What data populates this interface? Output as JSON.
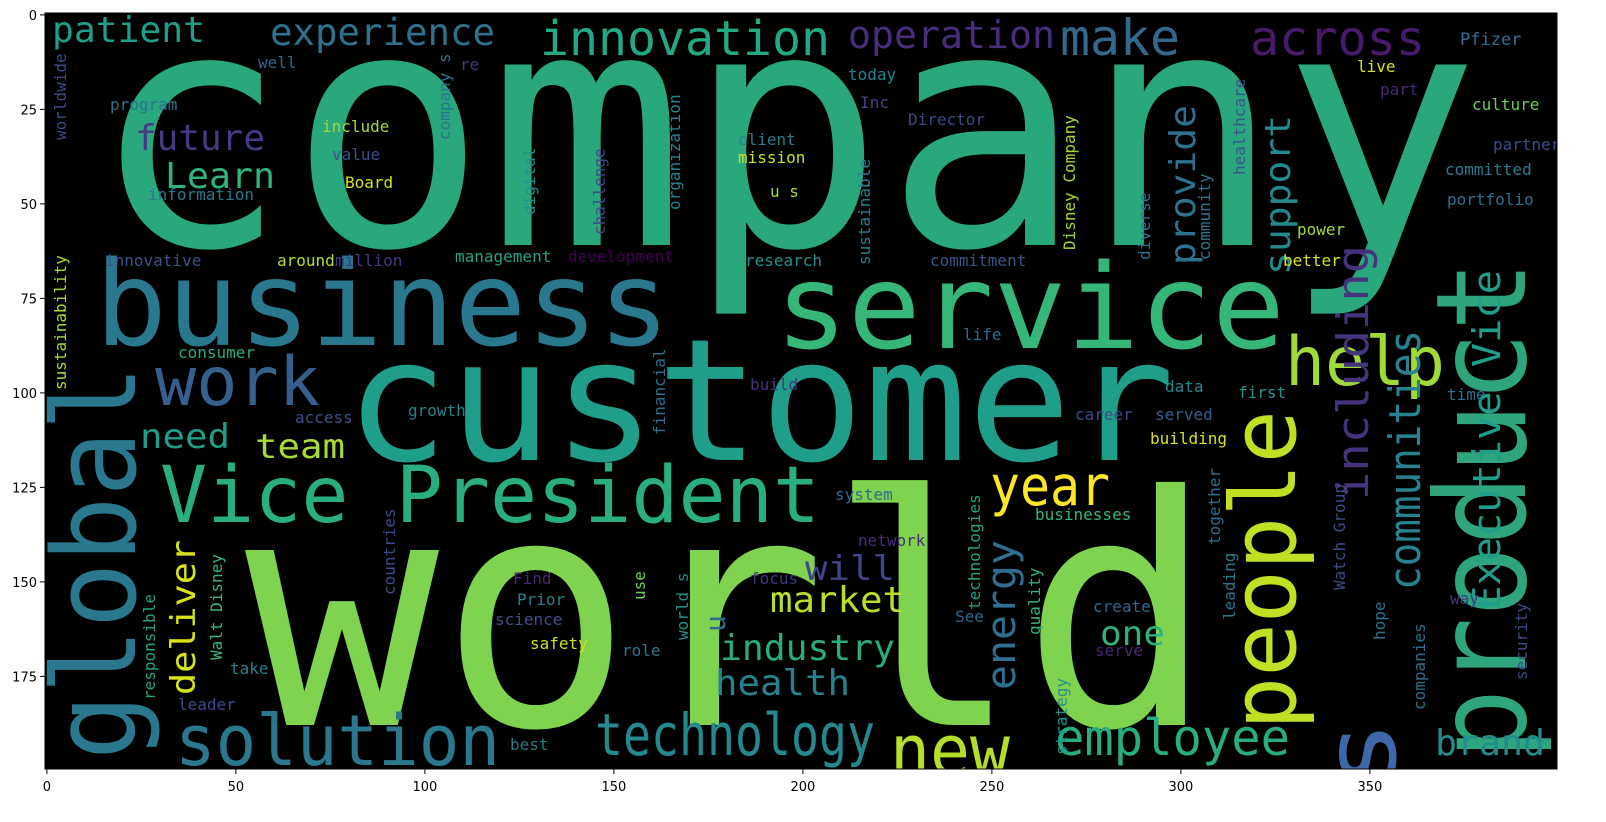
{
  "chart_data": {
    "type": "wordcloud",
    "xlim": [
      -0.5,
      399.5
    ],
    "ylim": [
      199.5,
      -0.5
    ],
    "xticks": [
      0,
      50,
      100,
      150,
      200,
      250,
      300,
      350
    ],
    "yticks": [
      0,
      25,
      50,
      75,
      100,
      125,
      150,
      175
    ],
    "background": "#000000",
    "words": [
      {
        "text": "company",
        "color": "#2aa87d"
      },
      {
        "text": "world",
        "color": "#7fd34e"
      },
      {
        "text": "customer",
        "color": "#1f9e89"
      },
      {
        "text": "business",
        "color": "#2a788e"
      },
      {
        "text": "service",
        "color": "#35b779"
      },
      {
        "text": "global",
        "color": "#2a788e"
      },
      {
        "text": "product",
        "color": "#2ea47f"
      },
      {
        "text": "people",
        "color": "#c2df23"
      },
      {
        "text": "Vice President",
        "color": "#29af7f"
      },
      {
        "text": "innovation",
        "color": "#22a884"
      },
      {
        "text": "operation",
        "color": "#472d7b"
      },
      {
        "text": "make",
        "color": "#31688e"
      },
      {
        "text": "across",
        "color": "#481a6c"
      },
      {
        "text": "experience",
        "color": "#2c728e"
      },
      {
        "text": "patient",
        "color": "#1f9e89"
      },
      {
        "text": "Pfizer",
        "color": "#2c728e"
      },
      {
        "text": "future",
        "color": "#443a83"
      },
      {
        "text": "Learn",
        "color": "#2fb47c"
      },
      {
        "text": "work",
        "color": "#355f8d"
      },
      {
        "text": "help",
        "color": "#a0da39"
      },
      {
        "text": "provide",
        "color": "#2c728e"
      },
      {
        "text": "support",
        "color": "#23898e"
      },
      {
        "text": "including",
        "color": "#46337e"
      },
      {
        "text": "communities",
        "color": "#26828e"
      },
      {
        "text": "Executive Vice",
        "color": "#1f9e89"
      },
      {
        "text": "year",
        "color": "#fde725"
      },
      {
        "text": "energy",
        "color": "#2e6e8e"
      },
      {
        "text": "new",
        "color": "#b5de2b"
      },
      {
        "text": "employee",
        "color": "#26ad81"
      },
      {
        "text": "brand",
        "color": "#228d8d"
      },
      {
        "text": "technology",
        "color": "#23898e"
      },
      {
        "text": "solution",
        "color": "#2a788e"
      },
      {
        "text": "s",
        "color": "#3e68a8"
      },
      {
        "text": "need",
        "color": "#1f9e89"
      },
      {
        "text": "team",
        "color": "#a8db34"
      },
      {
        "text": "deliver",
        "color": "#d8e219"
      },
      {
        "text": "market",
        "color": "#b8de29"
      },
      {
        "text": "will",
        "color": "#414487"
      },
      {
        "text": "industry",
        "color": "#27ad81"
      },
      {
        "text": "health",
        "color": "#26828e"
      },
      {
        "text": "one",
        "color": "#2db27d"
      },
      {
        "text": "u",
        "color": "#31688e"
      },
      {
        "text": "well",
        "color": "#31688e"
      },
      {
        "text": "re",
        "color": "#46337e"
      },
      {
        "text": "worldwide",
        "color": "#3e4a89"
      },
      {
        "text": "program",
        "color": "#2c728e"
      },
      {
        "text": "include",
        "color": "#a0da39"
      },
      {
        "text": "company s",
        "color": "#2c728e"
      },
      {
        "text": "value",
        "color": "#3b528b"
      },
      {
        "text": "Board",
        "color": "#d2e21b"
      },
      {
        "text": "information",
        "color": "#2a788e"
      },
      {
        "text": "digital",
        "color": "#21918c"
      },
      {
        "text": "challenge",
        "color": "#3e4a89"
      },
      {
        "text": "organization",
        "color": "#26828e"
      },
      {
        "text": "today",
        "color": "#26828e"
      },
      {
        "text": "Inc",
        "color": "#433e85"
      },
      {
        "text": "Director",
        "color": "#3e4a89"
      },
      {
        "text": "client",
        "color": "#287c8e"
      },
      {
        "text": "mission",
        "color": "#c8e020"
      },
      {
        "text": "u s",
        "color": "#a5db36"
      },
      {
        "text": "sustainable",
        "color": "#27808e"
      },
      {
        "text": "Disney Company",
        "color": "#a2da37"
      },
      {
        "text": "diverse",
        "color": "#2c728e"
      },
      {
        "text": "community",
        "color": "#2a768e"
      },
      {
        "text": "healthcare",
        "color": "#3b528b"
      },
      {
        "text": "live",
        "color": "#d8e219"
      },
      {
        "text": "part",
        "color": "#482878"
      },
      {
        "text": "culture",
        "color": "#6ece58"
      },
      {
        "text": "partner",
        "color": "#3e4a89"
      },
      {
        "text": "committed",
        "color": "#297b8e"
      },
      {
        "text": "portfolio",
        "color": "#2c728e"
      },
      {
        "text": "power",
        "color": "#a0da39"
      },
      {
        "text": "better",
        "color": "#d8e219"
      },
      {
        "text": "innovative",
        "color": "#3b528b"
      },
      {
        "text": "around",
        "color": "#b5de2b"
      },
      {
        "text": "million",
        "color": "#443983"
      },
      {
        "text": "management",
        "color": "#20a386"
      },
      {
        "text": "development",
        "color": "#440154"
      },
      {
        "text": "research",
        "color": "#21908d"
      },
      {
        "text": "commitment",
        "color": "#39568c"
      },
      {
        "text": "sustainability",
        "color": "#a5db36"
      },
      {
        "text": "consumer",
        "color": "#26ad81"
      },
      {
        "text": "life",
        "color": "#2e6e8e"
      },
      {
        "text": "build",
        "color": "#46337e"
      },
      {
        "text": "access",
        "color": "#3b528b"
      },
      {
        "text": "growth",
        "color": "#26828e"
      },
      {
        "text": "data",
        "color": "#238a8d"
      },
      {
        "text": "first",
        "color": "#21918c"
      },
      {
        "text": "financial",
        "color": "#2e6e8e"
      },
      {
        "text": "career",
        "color": "#3e4a89"
      },
      {
        "text": "served",
        "color": "#355f8d"
      },
      {
        "text": "time",
        "color": "#2d718e"
      },
      {
        "text": "building",
        "color": "#d8e219"
      },
      {
        "text": "system",
        "color": "#31688e"
      },
      {
        "text": "businesses",
        "color": "#35b779"
      },
      {
        "text": "network",
        "color": "#472d7b"
      },
      {
        "text": "technologies",
        "color": "#20a386"
      },
      {
        "text": "together",
        "color": "#2e6e8e"
      },
      {
        "text": "Watch Group",
        "color": "#3e4a89"
      },
      {
        "text": "countries",
        "color": "#3e4a89"
      },
      {
        "text": "Walt Disney",
        "color": "#35b779"
      },
      {
        "text": "responsible",
        "color": "#20a386"
      },
      {
        "text": "world s",
        "color": "#21918c"
      },
      {
        "text": "use",
        "color": "#6ece58"
      },
      {
        "text": "Find",
        "color": "#482878"
      },
      {
        "text": "Prior",
        "color": "#26828e"
      },
      {
        "text": "science",
        "color": "#3b528b"
      },
      {
        "text": "safety",
        "color": "#cae11f"
      },
      {
        "text": "focus",
        "color": "#46337e"
      },
      {
        "text": "See",
        "color": "#31688e"
      },
      {
        "text": "quality",
        "color": "#2fb47c"
      },
      {
        "text": "create",
        "color": "#31688e"
      },
      {
        "text": "leading",
        "color": "#2a788e"
      },
      {
        "text": "way",
        "color": "#443983"
      },
      {
        "text": "hope",
        "color": "#2c728e"
      },
      {
        "text": "companies",
        "color": "#2c728e"
      },
      {
        "text": "security",
        "color": "#3e4a89"
      },
      {
        "text": "role",
        "color": "#2a788e"
      },
      {
        "text": "take",
        "color": "#26828e"
      },
      {
        "text": "serve",
        "color": "#482878"
      },
      {
        "text": "strategy",
        "color": "#21918c"
      },
      {
        "text": "leader",
        "color": "#3e4a89"
      },
      {
        "text": "best",
        "color": "#287c8e"
      }
    ]
  }
}
